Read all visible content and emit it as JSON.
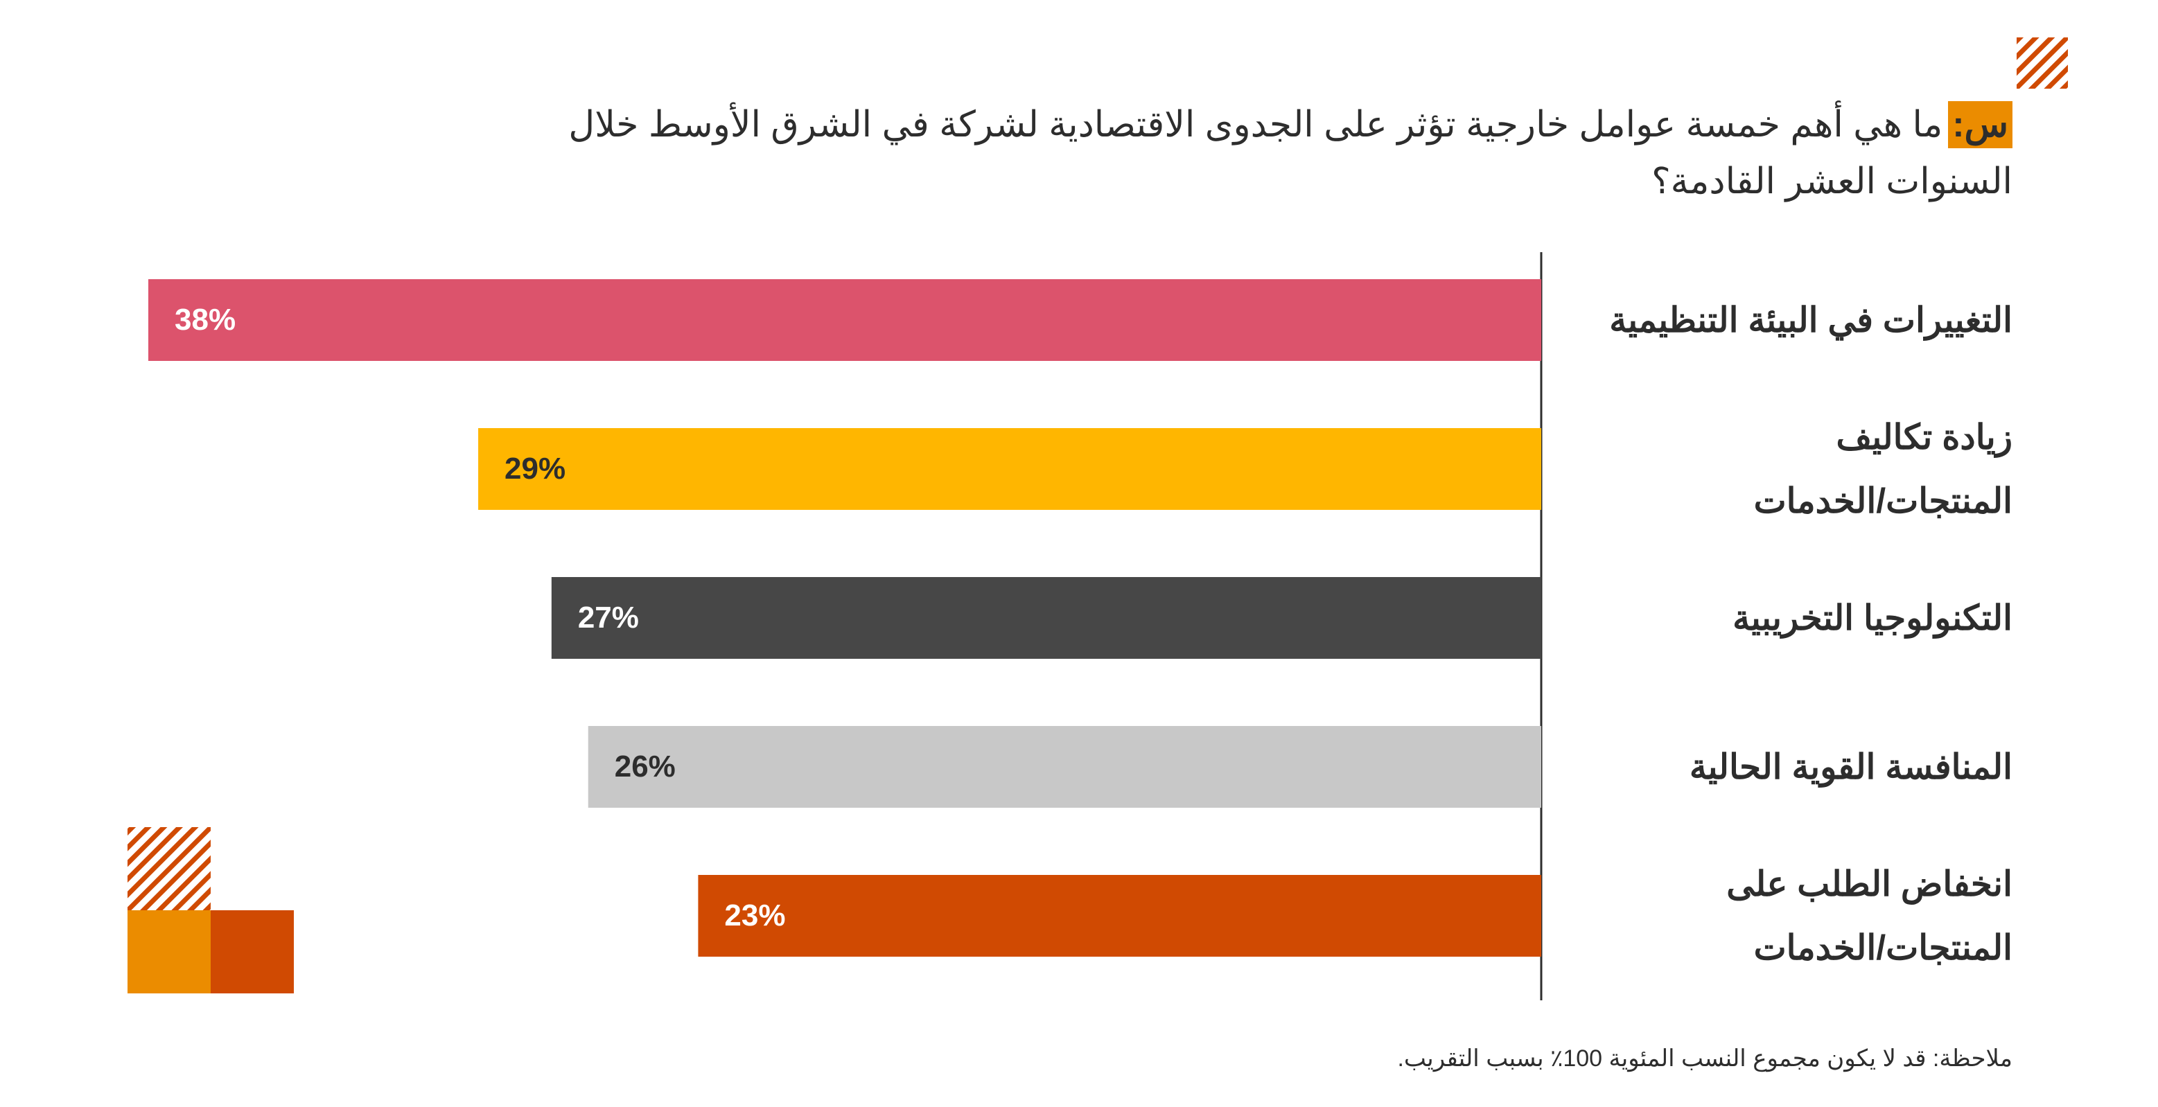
{
  "chart_data": {
    "type": "bar",
    "question_label": "س:",
    "title": [
      "ما هي أهم خمسة عوامل خارجية تؤثر على الجدوى الاقتصادية لشركة في الشرق الأوسط خلال",
      "السنوات العشر القادمة؟"
    ],
    "categories": [
      [
        "التغييرات في البيئة التنظيمية"
      ],
      [
        "زيادة تكاليف",
        "المنتجات/الخدمات"
      ],
      [
        "التكنولوجيا التخريبية"
      ],
      [
        "المنافسة القوية الحالية"
      ],
      [
        "انخفاض الطلب على",
        "المنتجات/الخدمات"
      ]
    ],
    "values": [
      38,
      29,
      27,
      26,
      23
    ],
    "value_labels": [
      "38%",
      "29%",
      "27%",
      "26%",
      "23%"
    ],
    "colors": [
      "#dc536c",
      "#ffb600",
      "#474747",
      "#c8c8c8",
      "#d04a02"
    ],
    "label_colors": [
      "#ffffff",
      "#2d2d2d",
      "#ffffff",
      "#2d2d2d",
      "#ffffff"
    ],
    "note": "ملاحظة: قد لا يكون مجموع النسب المئوية 100٪ بسبب التقريب."
  }
}
